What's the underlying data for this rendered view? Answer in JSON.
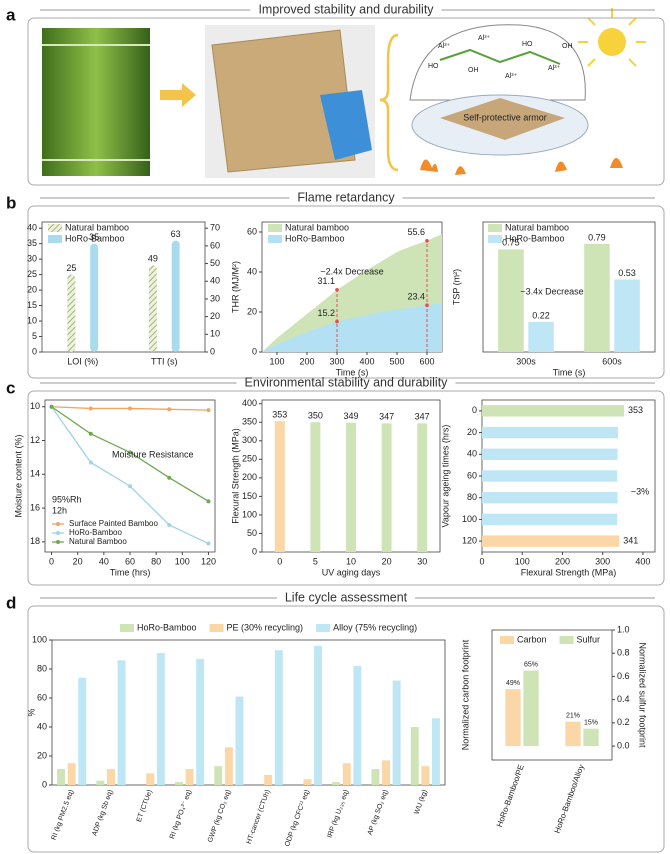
{
  "panels": [
    {
      "letter": "a",
      "title": "Improved stability and durability"
    },
    {
      "letter": "b",
      "title": "Flame retardancy"
    },
    {
      "letter": "c",
      "title": "Environmental stability and durability"
    },
    {
      "letter": "d",
      "title": "Life cycle assessment"
    }
  ],
  "panel_a": {
    "armor_label": "Self-protective armor",
    "molecule_labels": [
      "Al³⁺",
      "Al³⁺",
      "Al³⁺",
      "Al³⁺",
      "HO",
      "OH",
      "HO",
      "OH"
    ]
  },
  "chart_data": [
    {
      "type": "bar",
      "categories": [
        "LOI (%)",
        "TTI (s)"
      ],
      "category_axis": [
        "y",
        "y2"
      ],
      "data_labels": true,
      "series": [
        {
          "name": "Natural bamboo",
          "color": "#b7c78f",
          "pattern": "hatch",
          "values": [
            25,
            49
          ]
        },
        {
          "name": "HoRo-Bamboo",
          "color": "#a9dbef",
          "values": [
            35,
            63
          ]
        }
      ],
      "ylim": [
        0,
        42
      ],
      "yticks": [
        0,
        5,
        10,
        15,
        20,
        25,
        30,
        35,
        40
      ],
      "y2lim": [
        0,
        73.5
      ],
      "y2ticks": [
        0,
        10,
        20,
        30,
        40,
        50,
        60,
        70
      ]
    },
    {
      "type": "area",
      "xlabel": "Time (s)",
      "ylabel": "THR (MJ/M²)",
      "x": [
        50,
        100,
        150,
        200,
        250,
        300,
        350,
        400,
        450,
        500,
        550,
        600,
        650
      ],
      "series": [
        {
          "name": "Natural bamboo",
          "color": "#cfe4b6",
          "values": [
            0,
            7,
            13,
            19,
            25,
            31.1,
            36,
            41,
            45.5,
            50,
            53,
            55.6,
            59
          ],
          "value_labels": [
            null,
            null,
            null,
            null,
            null,
            "31.1",
            null,
            null,
            null,
            null,
            null,
            "55.6",
            null
          ]
        },
        {
          "name": "HoRo-Bamboo",
          "color": "#b3e0f2",
          "values": [
            0,
            4,
            7,
            10,
            12.7,
            15.2,
            17,
            18.5,
            20,
            21.2,
            22.3,
            23.4,
            24.5
          ],
          "value_labels": [
            null,
            null,
            null,
            null,
            null,
            "15.2",
            null,
            null,
            null,
            null,
            null,
            "23.4",
            null
          ]
        }
      ],
      "xlim": [
        50,
        650
      ],
      "xticks": [
        100,
        200,
        300,
        400,
        500,
        600
      ],
      "ylim": [
        0,
        65
      ],
      "yticks": [
        0,
        20,
        40,
        60
      ],
      "annotations": [
        "~2.4x Decrease"
      ]
    },
    {
      "type": "bar",
      "xlabel": "Time (s)",
      "ylabel": "TSP (m²)",
      "categories": [
        "300s",
        "600s"
      ],
      "data_labels": true,
      "series": [
        {
          "name": "Natural bamboo",
          "color": "#cfe4b6",
          "values": [
            0.75,
            0.79
          ]
        },
        {
          "name": "HoRo-Bamboo",
          "color": "#bfe6f5",
          "values": [
            0.22,
            0.53
          ]
        }
      ],
      "ylim": [
        0,
        0.95
      ],
      "annotations": [
        "~3.4x Decrease"
      ]
    },
    {
      "type": "line",
      "xlabel": "Time (hrs)",
      "ylabel": "Moisture content (%)",
      "x": [
        0,
        30,
        60,
        90,
        120
      ],
      "series": [
        {
          "name": "Surface Painted Bamboo",
          "color": "#f0a466",
          "values": [
            10,
            10.1,
            10.1,
            10.15,
            10.2
          ]
        },
        {
          "name": "HoRo-Bamboo",
          "color": "#9fd3e8",
          "values": [
            10,
            13.3,
            14.7,
            17,
            18.1
          ]
        },
        {
          "name": "Natural Bamboo",
          "color": "#6fa84f",
          "values": [
            10,
            11.6,
            12.7,
            14.2,
            15.6
          ]
        }
      ],
      "xlim": [
        -5,
        125
      ],
      "xticks": [
        0,
        20,
        40,
        60,
        80,
        100,
        120
      ],
      "ylim": [
        18.6,
        9.6
      ],
      "yticks": [
        10,
        12,
        14,
        16,
        18
      ],
      "annotations": [
        "Moisture Resistance",
        "95%Rh",
        "12h"
      ]
    },
    {
      "type": "bar",
      "xlabel": "UV aging days",
      "ylabel": "Flexural Strength (MPa)",
      "categories": [
        "0",
        "5",
        "10",
        "20",
        "30"
      ],
      "data_labels": true,
      "values": [
        353,
        350,
        349,
        347,
        347
      ],
      "colors": [
        "#fbd6a6",
        "#cfe4b6",
        "#cfe4b6",
        "#cfe4b6",
        "#cfe4b6"
      ],
      "ylim": [
        0,
        410
      ],
      "yticks": [
        0,
        50,
        100,
        150,
        200,
        250,
        300,
        350,
        400
      ]
    },
    {
      "type": "barh",
      "xlabel": "Flexural Strength (MPa)",
      "ylabel": "Vapour ageing times (hrs)",
      "categories": [
        "0",
        "20",
        "40",
        "60",
        "80",
        "100",
        "120"
      ],
      "values": [
        353,
        338,
        337,
        336,
        337,
        336,
        341
      ],
      "value_labels": [
        "353",
        null,
        null,
        null,
        null,
        null,
        "341"
      ],
      "colors": [
        "#cfe4b6",
        "#bfe6f5",
        "#bfe6f5",
        "#bfe6f5",
        "#bfe6f5",
        "#bfe6f5",
        "#fbd6a6"
      ],
      "xlim": [
        0,
        430
      ],
      "xticks": [
        0,
        100,
        200,
        300,
        400
      ],
      "annotations": [
        "~3%"
      ]
    },
    {
      "type": "bar",
      "ylabel": "%",
      "rotate_labels": true,
      "categories": [
        "RI (kg PM2.5 eq)",
        "ADP (kg Sb eq)",
        "ET (CTUe)",
        "RI (kg PO₄³⁻ eq)",
        "GWP (kg CO₂ eq)",
        "HT-cancer (CTUh)",
        "ODP (kg CFC¹¹ eq)",
        "IRP (kg U₂₃₅ eq)",
        "AP (kg SO₂ eq)",
        "WU (kg)"
      ],
      "series": [
        {
          "name": "HoRo-Bamboo",
          "color": "#cfe4b6",
          "values": [
            11,
            3,
            0,
            2,
            13,
            0,
            0,
            2,
            11,
            40
          ]
        },
        {
          "name": "PE (30% recycling)",
          "color": "#fbd6a6",
          "values": [
            15,
            11,
            8,
            11,
            26,
            7,
            4,
            15,
            17,
            13
          ]
        },
        {
          "name": "Alloy (75% recycling)",
          "color": "#bfe6f5",
          "values": [
            74,
            86,
            91,
            87,
            61,
            93,
            96,
            82,
            72,
            46
          ]
        }
      ],
      "ylim": [
        0,
        100
      ],
      "yticks": [
        0,
        20,
        40,
        60,
        80,
        100
      ]
    },
    {
      "type": "bar",
      "ylabel": "Normalized carbon footprint",
      "y2label": "Normalized sulfur footprint",
      "rotate_labels": true,
      "categories": [
        "HoRo-Bamboo/PE",
        "HoRo-Bamboo/Alloy"
      ],
      "series": [
        {
          "name": "Carbon",
          "color": "#fbd6a6",
          "values": [
            0.49,
            0.21
          ],
          "value_labels": [
            "49%",
            "21%"
          ]
        },
        {
          "name": "Sulfur",
          "color": "#cfe4b6",
          "axis": "y2",
          "values": [
            0.65,
            0.15
          ],
          "value_labels": [
            "65%",
            "15%"
          ]
        }
      ],
      "ylim": [
        -0.12,
        1.0
      ],
      "y2lim": [
        -0.12,
        1.0
      ],
      "y2ticks": [
        {
          "value": 0,
          "label": "0.0"
        },
        {
          "value": 0.2,
          "label": "0.2"
        },
        {
          "value": 0.4,
          "label": "0.4"
        },
        {
          "value": 0.6,
          "label": "0.6"
        },
        {
          "value": 0.8,
          "label": "0.8"
        },
        {
          "value": 1,
          "label": "1.0"
        }
      ]
    }
  ]
}
